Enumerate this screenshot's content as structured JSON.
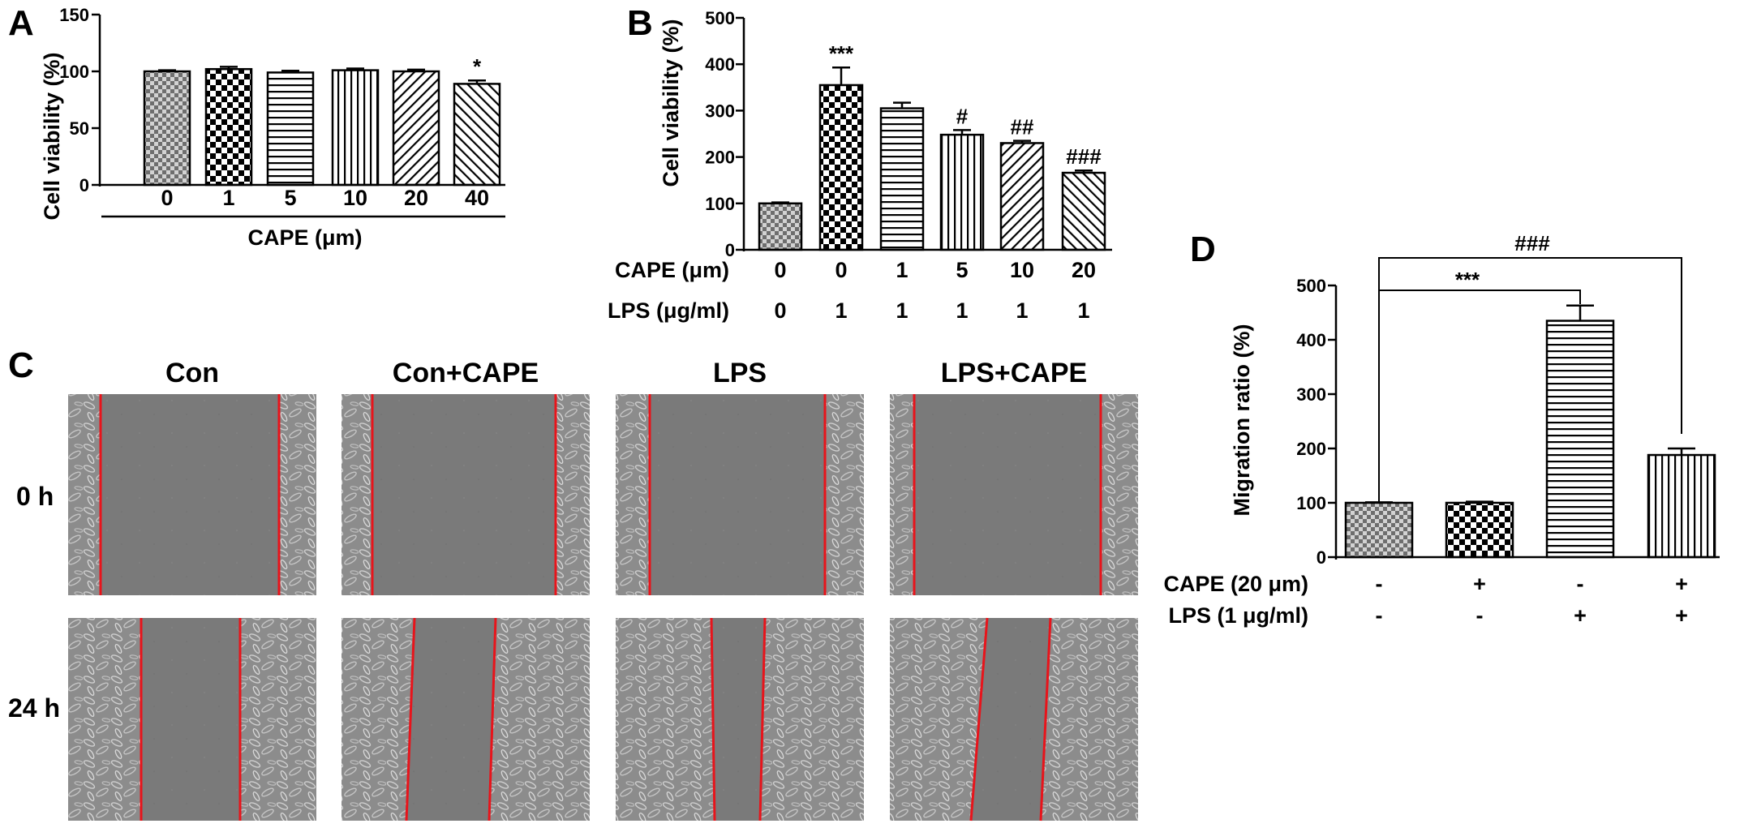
{
  "panels": {
    "a": {
      "letter": "A",
      "ylabel": "Cell viability (%)",
      "xlabel": "CAPE (μm)",
      "yticks": [
        "0",
        "50",
        "100",
        "150"
      ],
      "ylim": [
        0,
        150
      ]
    },
    "b": {
      "letter": "B",
      "ylabel": "Cell viability (%)",
      "yticks": [
        "0",
        "100",
        "200",
        "300",
        "400",
        "500"
      ],
      "ylim": [
        0,
        500
      ],
      "row_labels": [
        "CAPE (μm)",
        "LPS (μg/ml)"
      ],
      "cape_values": [
        "0",
        "0",
        "1",
        "5",
        "10",
        "20"
      ],
      "lps_values": [
        "0",
        "1",
        "1",
        "1",
        "1",
        "1"
      ]
    },
    "c": {
      "letter": "C",
      "columns": [
        "Con",
        "Con+CAPE",
        "LPS",
        "LPS+CAPE"
      ],
      "rows": [
        "0 h",
        "24 h"
      ]
    },
    "d": {
      "letter": "D",
      "ylabel": "Migration ratio (%)",
      "yticks": [
        "0",
        "100",
        "200",
        "300",
        "400",
        "500"
      ],
      "ylim": [
        0,
        500
      ],
      "row_labels": [
        "CAPE (20 μm)",
        "LPS (1 μg/ml)"
      ],
      "cape_signs": [
        "-",
        "+",
        "-",
        "+"
      ],
      "lps_signs": [
        "-",
        "-",
        "+",
        "+"
      ],
      "bracket_labels": [
        "***",
        "###"
      ]
    }
  },
  "chart_data": [
    {
      "panel": "A",
      "type": "bar",
      "categories": [
        "0",
        "1",
        "5",
        "10",
        "20",
        "40"
      ],
      "values": [
        100,
        102,
        99,
        101,
        100,
        89
      ],
      "errors": [
        1,
        2,
        1.5,
        1.5,
        1.5,
        3
      ],
      "annotations": [
        "",
        "",
        "",
        "",
        "",
        "*"
      ],
      "xlabel": "CAPE (μm)",
      "ylabel": "Cell viability (%)",
      "ylim": [
        0,
        150
      ]
    },
    {
      "panel": "B",
      "type": "bar",
      "categories": [
        "0/0",
        "0/1",
        "1/1",
        "5/1",
        "10/1",
        "20/1"
      ],
      "values": [
        100,
        355,
        305,
        248,
        230,
        166
      ],
      "errors": [
        2,
        38,
        12,
        10,
        5,
        5
      ],
      "annotations": [
        "",
        "***",
        "",
        "#",
        "##",
        "###"
      ],
      "ylabel": "Cell viability (%)",
      "ylim": [
        0,
        500
      ]
    },
    {
      "panel": "D",
      "type": "bar",
      "categories": [
        "-/-",
        "+/-",
        "-/+",
        "+/+"
      ],
      "values": [
        100,
        100,
        435,
        188
      ],
      "errors": [
        1,
        2,
        28,
        12
      ],
      "annotations": [
        "",
        "",
        "",
        ""
      ],
      "ylabel": "Migration ratio (%)",
      "ylim": [
        0,
        500
      ]
    }
  ],
  "colors": {
    "axis": "#000000",
    "scratch_line": "#e8141b",
    "micrograph_gap": "#7c7c7c",
    "micrograph_cells": "#a9a9a9"
  }
}
